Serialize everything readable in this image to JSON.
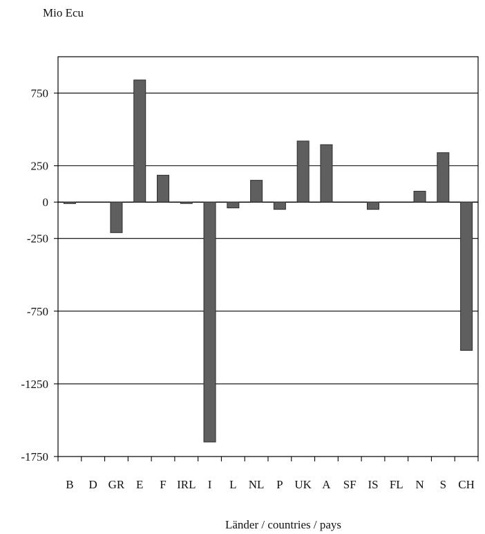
{
  "chart_data": {
    "type": "bar",
    "unit_label": "Mio Ecu",
    "xlabel": "Länder / countries / pays",
    "ylabel": "",
    "ylim": [
      -1750,
      1000
    ],
    "yticks": [
      750,
      250,
      0,
      -250,
      -750,
      -1250,
      -1750
    ],
    "grid": true,
    "categories": [
      "B",
      "D",
      "GR",
      "E",
      "F",
      "IRL",
      "I",
      "L",
      "NL",
      "P",
      "UK",
      "A",
      "SF",
      "IS",
      "FL",
      "N",
      "S",
      "CH"
    ],
    "values": [
      -10,
      0,
      -210,
      840,
      185,
      -5,
      -1650,
      -40,
      150,
      -50,
      420,
      395,
      0,
      -50,
      0,
      75,
      340,
      -1020
    ],
    "colors": {
      "bar": "#5f5f5f",
      "bar_edge": "#2b2b2b",
      "grid": "#000000",
      "axis": "#000000",
      "text": "#111111"
    }
  }
}
